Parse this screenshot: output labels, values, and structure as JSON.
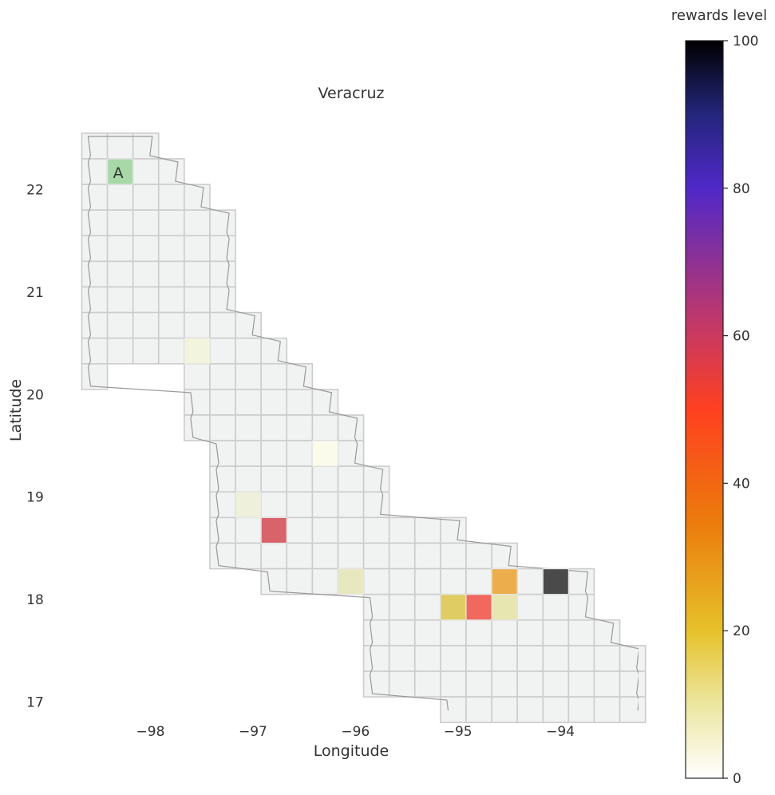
{
  "chart_data": {
    "type": "heatmap",
    "title": "Veracruz",
    "xlabel": "Longitude",
    "ylabel": "Latitude",
    "xlim": [
      -98.75,
      -93.5
    ],
    "ylim": [
      16.85,
      22.55
    ],
    "x_ticks": [
      {
        "value": -98,
        "label": "−98"
      },
      {
        "value": -97,
        "label": "−97"
      },
      {
        "value": -96,
        "label": "−96"
      },
      {
        "value": -95,
        "label": "−95"
      },
      {
        "value": -94,
        "label": "−94"
      }
    ],
    "y_ticks": [
      {
        "value": 22,
        "label": "22"
      },
      {
        "value": 21,
        "label": "21"
      },
      {
        "value": 20,
        "label": "20"
      },
      {
        "value": 19,
        "label": "19"
      },
      {
        "value": 18,
        "label": "18"
      },
      {
        "value": 17,
        "label": "17"
      }
    ],
    "grid": {
      "origin_lon": -98.67,
      "origin_lat": 22.55,
      "cell_deg": 0.25
    },
    "grid_rows": [
      {
        "row": 0,
        "cols": [
          0,
          1,
          2
        ]
      },
      {
        "row": 1,
        "cols": [
          0,
          1,
          2,
          3
        ]
      },
      {
        "row": 2,
        "cols": [
          0,
          1,
          2,
          3,
          4
        ]
      },
      {
        "row": 3,
        "cols": [
          0,
          1,
          2,
          3,
          4,
          5
        ]
      },
      {
        "row": 4,
        "cols": [
          0,
          1,
          2,
          3,
          4,
          5
        ]
      },
      {
        "row": 5,
        "cols": [
          0,
          1,
          2,
          3,
          4,
          5
        ]
      },
      {
        "row": 6,
        "cols": [
          0,
          1,
          2,
          3,
          4,
          5
        ]
      },
      {
        "row": 7,
        "cols": [
          0,
          1,
          2,
          3,
          4,
          5,
          6
        ]
      },
      {
        "row": 8,
        "cols": [
          0,
          1,
          2,
          3,
          4,
          5,
          6,
          7
        ]
      },
      {
        "row": 9,
        "cols": [
          0,
          4,
          5,
          6,
          7,
          8
        ]
      },
      {
        "row": 10,
        "cols": [
          4,
          5,
          6,
          7,
          8,
          9
        ]
      },
      {
        "row": 11,
        "cols": [
          4,
          5,
          6,
          7,
          8,
          9,
          10
        ]
      },
      {
        "row": 12,
        "cols": [
          5,
          6,
          7,
          8,
          9,
          10
        ]
      },
      {
        "row": 13,
        "cols": [
          5,
          6,
          7,
          8,
          9,
          10,
          11
        ]
      },
      {
        "row": 14,
        "cols": [
          5,
          6,
          7,
          8,
          9,
          10,
          11
        ]
      },
      {
        "row": 15,
        "cols": [
          5,
          6,
          7,
          8,
          9,
          10,
          11,
          12,
          13,
          14
        ]
      },
      {
        "row": 16,
        "cols": [
          5,
          6,
          7,
          8,
          9,
          10,
          11,
          12,
          13,
          14,
          15,
          16
        ]
      },
      {
        "row": 17,
        "cols": [
          7,
          8,
          9,
          10,
          11,
          12,
          13,
          14,
          15,
          16,
          17,
          18,
          19
        ]
      },
      {
        "row": 18,
        "cols": [
          11,
          12,
          13,
          14,
          15,
          16,
          17,
          18,
          19
        ]
      },
      {
        "row": 19,
        "cols": [
          11,
          12,
          13,
          14,
          15,
          16,
          17,
          18,
          19,
          20
        ]
      },
      {
        "row": 20,
        "cols": [
          11,
          12,
          13,
          14,
          15,
          16,
          17,
          18,
          19,
          20,
          21
        ]
      },
      {
        "row": 21,
        "cols": [
          11,
          12,
          13,
          14,
          15,
          16,
          17,
          18,
          19,
          20,
          21
        ]
      },
      {
        "row": 22,
        "cols": [
          14,
          15,
          16,
          17,
          18,
          19,
          20,
          21
        ]
      }
    ],
    "highlighted_cells": [
      {
        "row": 1,
        "col": 1,
        "value": 0,
        "color": "#a8d8a8",
        "label": "A"
      },
      {
        "row": 8,
        "col": 4,
        "value": 3,
        "color": "#f3f4de"
      },
      {
        "row": 12,
        "col": 9,
        "value": 2,
        "color": "#fafbeb"
      },
      {
        "row": 14,
        "col": 6,
        "value": 3,
        "color": "#eef0dc"
      },
      {
        "row": 15,
        "col": 7,
        "value": 58,
        "color": "#d9636a"
      },
      {
        "row": 17,
        "col": 10,
        "value": 13,
        "color": "#e8e8c0"
      },
      {
        "row": 17,
        "col": 16,
        "value": 30,
        "color": "#ecae4c"
      },
      {
        "row": 17,
        "col": 18,
        "value": 100,
        "color": "#4a4a4a"
      },
      {
        "row": 18,
        "col": 14,
        "value": 22,
        "color": "#dfcd63"
      },
      {
        "row": 18,
        "col": 15,
        "value": 50,
        "color": "#f1685e"
      },
      {
        "row": 18,
        "col": 16,
        "value": 14,
        "color": "#e7e6b0"
      }
    ],
    "region_name": "Veracruz",
    "colorbar": {
      "label": "rewards level",
      "min": 0,
      "max": 100,
      "ticks": [
        {
          "value": 0,
          "label": "0"
        },
        {
          "value": 20,
          "label": "20"
        },
        {
          "value": 40,
          "label": "40"
        },
        {
          "value": 60,
          "label": "60"
        },
        {
          "value": 80,
          "label": "80"
        },
        {
          "value": 100,
          "label": "100"
        }
      ],
      "stops": [
        {
          "value": 0,
          "color": "#ffffff"
        },
        {
          "value": 10,
          "color": "#ece6a0"
        },
        {
          "value": 20,
          "color": "#e6c12a"
        },
        {
          "value": 35,
          "color": "#ec7a0c"
        },
        {
          "value": 50,
          "color": "#ff4020"
        },
        {
          "value": 62,
          "color": "#c0386a"
        },
        {
          "value": 80,
          "color": "#5028c8"
        },
        {
          "value": 90,
          "color": "#24267c"
        },
        {
          "value": 100,
          "color": "#000000"
        }
      ]
    },
    "colors": {
      "cell_fill": "#f1f2f2",
      "cell_border": "#cccccc",
      "coast": "#999999"
    }
  }
}
